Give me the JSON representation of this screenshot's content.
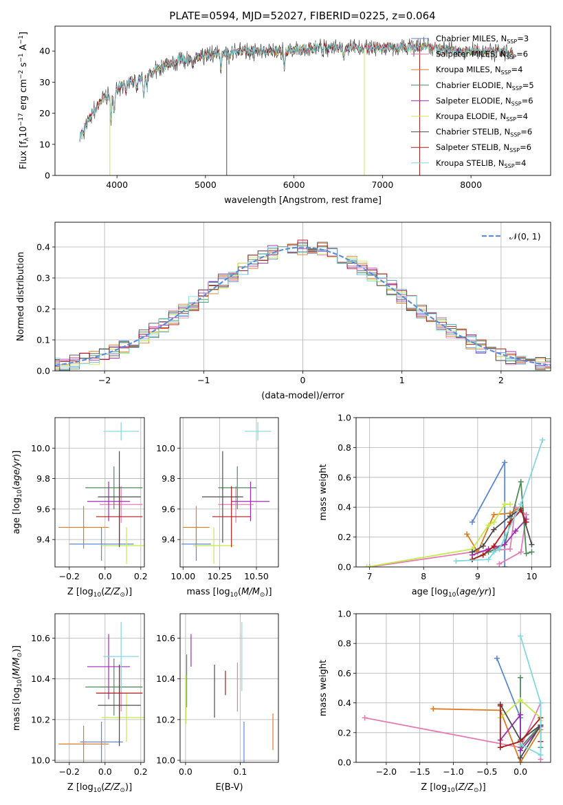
{
  "figure_title": "PLATE=0594, MJD=52027, FIBERID=0225, z=0.064",
  "colors": {
    "Chabrier MILES": "#5b86d6",
    "Salpeter MILES": "#e57bb3",
    "Kroupa MILES": "#e07a1f",
    "Chabrier ELODIE": "#4d8a5a",
    "Salpeter ELODIE": "#a02bb5",
    "Kroupa ELODIE": "#c4ea4b",
    "Chabrier STELIB": "#4a4a4a",
    "Salpeter STELIB": "#b01919",
    "Kroupa STELIB": "#7fd8e0",
    "normal": "#5b8ed8"
  },
  "chart_data": [
    {
      "id": "spectrum",
      "type": "line",
      "title": "PLATE=0594, MJD=52027, FIBERID=0225, z=0.064",
      "xlabel": "wavelength [Angstrom, rest frame]",
      "ylabel": "Flux [f",
      "xlim": [
        3300,
        8900
      ],
      "ylim": [
        0,
        48
      ],
      "xticks": [
        4000,
        5000,
        6000,
        7000,
        8000
      ],
      "yticks": [
        0,
        10,
        20,
        30,
        40
      ],
      "grid": false,
      "legend_placement": "upper right",
      "series": [
        {
          "name": "Chabrier MILES",
          "sub": "SSP",
          "n": "3"
        },
        {
          "name": "Salpeter MILES",
          "sub": "SSP",
          "n": "6"
        },
        {
          "name": "Kroupa MILES",
          "sub": "SSP",
          "n": "4"
        },
        {
          "name": "Chabrier ELODIE",
          "sub": "SSP",
          "n": "5"
        },
        {
          "name": "Salpeter ELODIE",
          "sub": "SSP",
          "n": "6"
        },
        {
          "name": "Kroupa ELODIE",
          "sub": "SSP",
          "n": "4"
        },
        {
          "name": "Chabrier STELIB",
          "sub": "SSP",
          "n": "6"
        },
        {
          "name": "Salpeter STELIB",
          "sub": "SSP",
          "n": "6"
        },
        {
          "name": "Kroupa STELIB",
          "sub": "SSP",
          "n": "4"
        }
      ],
      "continuum": [
        [
          3580,
          12
        ],
        [
          3700,
          19
        ],
        [
          3850,
          25
        ],
        [
          3950,
          26
        ],
        [
          4100,
          30
        ],
        [
          4300,
          31
        ],
        [
          4500,
          35
        ],
        [
          4700,
          37
        ],
        [
          4900,
          38
        ],
        [
          5100,
          39
        ],
        [
          5300,
          40
        ],
        [
          5500,
          40
        ],
        [
          5700,
          40
        ],
        [
          5900,
          40
        ],
        [
          6100,
          41
        ],
        [
          6300,
          41
        ],
        [
          6500,
          41
        ],
        [
          6700,
          41
        ],
        [
          6900,
          41
        ],
        [
          7100,
          41
        ],
        [
          7300,
          41
        ],
        [
          7500,
          42
        ],
        [
          7700,
          40.5
        ],
        [
          7900,
          40
        ],
        [
          8100,
          40
        ],
        [
          8300,
          39.5
        ],
        [
          8480,
          39
        ]
      ],
      "absorption_lines": [
        [
          3933,
          8
        ],
        [
          3968,
          7
        ],
        [
          4102,
          4
        ],
        [
          4226,
          3
        ],
        [
          4304,
          6
        ],
        [
          4340,
          4
        ],
        [
          4861,
          4
        ],
        [
          5175,
          6
        ],
        [
          5270,
          3
        ],
        [
          5890,
          6
        ],
        [
          6563,
          3
        ],
        [
          8498,
          3
        ],
        [
          8542,
          4
        ],
        [
          8662,
          4
        ]
      ],
      "spikes": [
        [
          3920,
          0,
          "#c4ea4b"
        ],
        [
          5240,
          0,
          "#4a4a4a"
        ],
        [
          6795,
          0,
          "#c4ea4b"
        ],
        [
          7420,
          0,
          "#b01919"
        ]
      ]
    },
    {
      "id": "residuals",
      "type": "line",
      "xlabel": "(data-model)/error",
      "ylabel": "Normed distribution",
      "xlim": [
        -2.5,
        2.5
      ],
      "ylim": [
        0,
        0.48
      ],
      "xticks": [
        -2,
        -1,
        0,
        1,
        2
      ],
      "xticklabels": [
        "−2",
        "−1",
        "0",
        "1",
        "2"
      ],
      "yticks": [
        0.0,
        0.1,
        0.2,
        0.3,
        0.4
      ],
      "grid": true,
      "legend_placement": "upper right",
      "legend_label": "𝒩(0, 1)",
      "normal_curve": {
        "mu": 0,
        "sigma": 1
      }
    },
    {
      "id": "age-vs-Z",
      "type": "scatter",
      "xlabel": "Z [log10(Z/Z⊙)]",
      "ylabel": "age  [log10(age/yr)]",
      "xlim": [
        -0.28,
        0.22
      ],
      "ylim": [
        9.22,
        10.2
      ],
      "xticks": [
        -0.2,
        0.0,
        0.2
      ],
      "xticklabels": [
        "−0.2",
        "0.0",
        "0.2"
      ],
      "yticks": [
        9.4,
        9.6,
        9.8,
        10.0
      ],
      "grid": true,
      "points": [
        {
          "series": "Chabrier MILES",
          "x": -0.02,
          "xerr": 0.18,
          "y": 9.37,
          "yerr": 0.11
        },
        {
          "series": "Salpeter MILES",
          "x": 0.09,
          "xerr": 0.12,
          "y": 9.63,
          "yerr": 0.12
        },
        {
          "series": "Kroupa MILES",
          "x": -0.12,
          "xerr": 0.14,
          "y": 9.48,
          "yerr": 0.14
        },
        {
          "series": "Chabrier ELODIE",
          "x": 0.05,
          "xerr": 0.16,
          "y": 9.74,
          "yerr": 0.14
        },
        {
          "series": "Salpeter ELODIE",
          "x": 0.02,
          "xerr": 0.12,
          "y": 9.65,
          "yerr": 0.13
        },
        {
          "series": "Kroupa ELODIE",
          "x": 0.12,
          "xerr": 0.14,
          "y": 9.36,
          "yerr": 0.12
        },
        {
          "series": "Chabrier STELIB",
          "x": 0.08,
          "xerr": 0.12,
          "y": 9.68,
          "yerr": 0.3
        },
        {
          "series": "Salpeter STELIB",
          "x": 0.08,
          "xerr": 0.13,
          "y": 9.55,
          "yerr": 0.2
        },
        {
          "series": "Kroupa STELIB",
          "x": 0.09,
          "xerr": 0.1,
          "y": 10.11,
          "yerr": 0.06
        }
      ]
    },
    {
      "id": "age-vs-mass",
      "type": "scatter",
      "xlabel": "mass [log10(M/M⊙)]",
      "ylabel": "",
      "xlim": [
        9.98,
        10.65
      ],
      "ylim": [
        9.22,
        10.2
      ],
      "xticks": [
        10.0,
        10.25,
        10.5
      ],
      "xticklabels": [
        "10.00",
        "10.25",
        "10.50"
      ],
      "yticks": [
        9.4,
        9.6,
        9.8,
        10.0
      ],
      "grid": true,
      "points": [
        {
          "series": "Chabrier MILES",
          "x": 10.09,
          "xerr": 0.1,
          "y": 9.37,
          "yerr": 0.11
        },
        {
          "series": "Salpeter MILES",
          "x": 10.36,
          "xerr": 0.12,
          "y": 9.63,
          "yerr": 0.12
        },
        {
          "series": "Kroupa MILES",
          "x": 10.09,
          "xerr": 0.09,
          "y": 9.48,
          "yerr": 0.14
        },
        {
          "series": "Chabrier ELODIE",
          "x": 10.37,
          "xerr": 0.13,
          "y": 9.74,
          "yerr": 0.14
        },
        {
          "series": "Salpeter ELODIE",
          "x": 10.46,
          "xerr": 0.13,
          "y": 9.65,
          "yerr": 0.13
        },
        {
          "series": "Kroupa ELODIE",
          "x": 10.21,
          "xerr": 0.14,
          "y": 9.36,
          "yerr": 0.12
        },
        {
          "series": "Chabrier STELIB",
          "x": 10.27,
          "xerr": 0.14,
          "y": 9.68,
          "yerr": 0.3
        },
        {
          "series": "Salpeter STELIB",
          "x": 10.33,
          "xerr": 0.13,
          "y": 9.55,
          "yerr": 0.2
        },
        {
          "series": "Kroupa STELIB",
          "x": 10.51,
          "xerr": 0.09,
          "y": 10.11,
          "yerr": 0.06
        }
      ]
    },
    {
      "id": "weight-vs-age",
      "type": "line",
      "xlabel": "age  [log10(age/yr)]",
      "ylabel": "mass weight",
      "xlim": [
        6.75,
        10.35
      ],
      "ylim": [
        0,
        1
      ],
      "xticks": [
        7,
        8,
        9,
        10
      ],
      "yticks": [
        0.0,
        0.2,
        0.4,
        0.6,
        0.8,
        1.0
      ],
      "grid": true,
      "series": [
        {
          "name": "Chabrier MILES",
          "x": [
            8.9,
            9.5,
            9.5
          ],
          "y": [
            0.3,
            0.7,
            0.0
          ]
        },
        {
          "name": "Salpeter MILES",
          "x": [
            7.0,
            8.9,
            9.6,
            9.7,
            9.9,
            9.8,
            9.4
          ],
          "y": [
            0.0,
            0.1,
            0.12,
            0.4,
            0.35,
            0.1,
            0.02
          ]
        },
        {
          "name": "Kroupa MILES",
          "x": [
            8.8,
            9.0,
            9.3,
            9.6,
            9.8
          ],
          "y": [
            0.22,
            0.1,
            0.35,
            0.36,
            0.4
          ]
        },
        {
          "name": "Chabrier ELODIE",
          "x": [
            8.9,
            9.2,
            9.5,
            9.8,
            9.9,
            10.0
          ],
          "y": [
            0.05,
            0.1,
            0.15,
            0.57,
            0.09,
            0.1
          ]
        },
        {
          "name": "Salpeter ELODIE",
          "x": [
            8.9,
            9.2,
            9.5,
            9.7,
            9.9
          ],
          "y": [
            0.08,
            0.12,
            0.15,
            0.24,
            0.32
          ]
        },
        {
          "name": "Kroupa ELODIE",
          "x": [
            6.95,
            8.9,
            9.2,
            9.3,
            9.5,
            9.6
          ],
          "y": [
            0.0,
            0.12,
            0.28,
            0.3,
            0.42,
            0.42
          ]
        },
        {
          "name": "Chabrier STELIB",
          "x": [
            8.9,
            9.1,
            9.3,
            9.6,
            9.8,
            10.0
          ],
          "y": [
            0.1,
            0.14,
            0.25,
            0.34,
            0.39,
            0.15
          ]
        },
        {
          "name": "Salpeter STELIB",
          "x": [
            8.9,
            9.1,
            9.3,
            9.6,
            9.8,
            9.9
          ],
          "y": [
            0.05,
            0.08,
            0.14,
            0.3,
            0.38,
            0.3
          ]
        },
        {
          "name": "Kroupa STELIB",
          "x": [
            8.6,
            9.2,
            9.3,
            9.4,
            9.8,
            10.2
          ],
          "y": [
            0.04,
            0.05,
            0.1,
            0.12,
            0.42,
            0.85
          ]
        }
      ]
    },
    {
      "id": "mass-vs-Z",
      "type": "scatter",
      "xlabel": "Z [log10(Z/Z⊙)]",
      "ylabel": "mass [log10(M/M⊙)]",
      "xlim": [
        -0.28,
        0.22
      ],
      "ylim": [
        9.99,
        10.72
      ],
      "xticks": [
        -0.2,
        0.0,
        0.2
      ],
      "xticklabels": [
        "−0.2",
        "0.0",
        "0.2"
      ],
      "yticks": [
        10.0,
        10.2,
        10.4,
        10.6
      ],
      "grid": true,
      "points": [
        {
          "series": "Chabrier MILES",
          "x": -0.02,
          "xerr": 0.12,
          "y": 10.09,
          "yerr": 0.1
        },
        {
          "series": "Salpeter MILES",
          "x": 0.09,
          "xerr": 0.12,
          "y": 10.36,
          "yerr": 0.12
        },
        {
          "series": "Kroupa MILES",
          "x": -0.12,
          "xerr": 0.14,
          "y": 10.08,
          "yerr": 0.09
        },
        {
          "series": "Chabrier ELODIE",
          "x": 0.05,
          "xerr": 0.16,
          "y": 10.36,
          "yerr": 0.14
        },
        {
          "series": "Salpeter ELODIE",
          "x": 0.02,
          "xerr": 0.12,
          "y": 10.46,
          "yerr": 0.16
        },
        {
          "series": "Kroupa ELODIE",
          "x": 0.12,
          "xerr": 0.14,
          "y": 10.21,
          "yerr": 0.12
        },
        {
          "series": "Chabrier STELIB",
          "x": 0.08,
          "xerr": 0.12,
          "y": 10.27,
          "yerr": 0.2
        },
        {
          "series": "Salpeter STELIB",
          "x": 0.08,
          "xerr": 0.13,
          "y": 10.33,
          "yerr": 0.13
        },
        {
          "series": "Kroupa STELIB",
          "x": 0.09,
          "xerr": 0.1,
          "y": 10.51,
          "yerr": 0.17
        }
      ]
    },
    {
      "id": "mass-vs-ebv",
      "type": "scatter",
      "xlabel": "E(B-V)",
      "ylabel": "",
      "xlim": [
        -0.01,
        0.17
      ],
      "ylim": [
        9.99,
        10.72
      ],
      "xticks": [
        0.0,
        0.1
      ],
      "xticklabels": [
        "0.0",
        "0.1"
      ],
      "yticks": [
        10.0,
        10.2,
        10.4,
        10.6
      ],
      "grid": true,
      "points": [
        {
          "series": "Chabrier MILES",
          "x": 0.107,
          "xerr": 0,
          "y": 10.09,
          "yerr": 0.1
        },
        {
          "series": "Salpeter MILES",
          "x": 0.095,
          "xerr": 0,
          "y": 10.36,
          "yerr": 0.12
        },
        {
          "series": "Kroupa MILES",
          "x": 0.16,
          "xerr": 0,
          "y": 10.14,
          "yerr": 0.09
        },
        {
          "series": "Chabrier ELODIE",
          "x": 0.002,
          "xerr": 0,
          "y": 10.39,
          "yerr": 0.13
        },
        {
          "series": "Salpeter ELODIE",
          "x": 0.01,
          "xerr": 0,
          "y": 10.54,
          "yerr": 0.08
        },
        {
          "series": "Kroupa ELODIE",
          "x": 0.001,
          "xerr": 0,
          "y": 10.3,
          "yerr": 0.12
        },
        {
          "series": "Chabrier STELIB",
          "x": 0.053,
          "xerr": 0,
          "y": 10.34,
          "yerr": 0.13
        },
        {
          "series": "Salpeter STELIB",
          "x": 0.073,
          "xerr": 0,
          "y": 10.38,
          "yerr": 0.06
        },
        {
          "series": "Kroupa STELIB",
          "x": 0.103,
          "xerr": 0,
          "y": 10.51,
          "yerr": 0.17
        }
      ]
    },
    {
      "id": "weight-vs-Z",
      "type": "line",
      "xlabel": "Z [log10(Z/Z⊙)]",
      "ylabel": "mass weight",
      "xlim": [
        -2.45,
        0.45
      ],
      "ylim": [
        0,
        1
      ],
      "xticks": [
        -2.0,
        -1.5,
        -1.0,
        -0.5,
        0.0
      ],
      "xticklabels": [
        "−2.0",
        "−1.5",
        "−1.0",
        "−0.5",
        "0.0"
      ],
      "yticks": [
        0.0,
        0.2,
        0.4,
        0.6,
        0.8,
        1.0
      ],
      "grid": true,
      "series": [
        {
          "name": "Chabrier MILES",
          "x": [
            -0.35,
            0.0,
            0.0
          ],
          "y": [
            0.7,
            0.3,
            0.0
          ]
        },
        {
          "name": "Salpeter MILES",
          "x": [
            -2.32,
            0.0,
            0.3,
            0.3
          ],
          "y": [
            0.3,
            0.1,
            0.4,
            0.02
          ]
        },
        {
          "name": "Kroupa MILES",
          "x": [
            -1.3,
            -0.3,
            0.0,
            0.3
          ],
          "y": [
            0.36,
            0.35,
            0.0,
            0.22
          ]
        },
        {
          "name": "Chabrier ELODIE",
          "x": [
            0.0,
            0.0,
            0.3,
            0.3
          ],
          "y": [
            0.57,
            0.1,
            0.25,
            0.1
          ]
        },
        {
          "name": "Salpeter ELODIE",
          "x": [
            -0.3,
            0.0,
            0.0,
            0.3
          ],
          "y": [
            0.15,
            0.32,
            0.08,
            0.24
          ]
        },
        {
          "name": "Kroupa ELODIE",
          "x": [
            -0.3,
            0.0,
            0.3,
            0.3
          ],
          "y": [
            0.3,
            0.42,
            0.3,
            0.28
          ]
        },
        {
          "name": "Chabrier STELIB",
          "x": [
            -0.3,
            0.0,
            0.3,
            0.0
          ],
          "y": [
            0.39,
            0.15,
            0.25,
            0.03
          ]
        },
        {
          "name": "Salpeter STELIB",
          "x": [
            -0.3,
            -0.3,
            0.0,
            0.3,
            0.3
          ],
          "y": [
            0.38,
            0.1,
            0.14,
            0.3,
            0.14
          ]
        },
        {
          "name": "Kroupa STELIB",
          "x": [
            0.0,
            0.3,
            0.3,
            0.0
          ],
          "y": [
            0.85,
            0.4,
            0.05,
            0.12
          ]
        }
      ]
    }
  ]
}
